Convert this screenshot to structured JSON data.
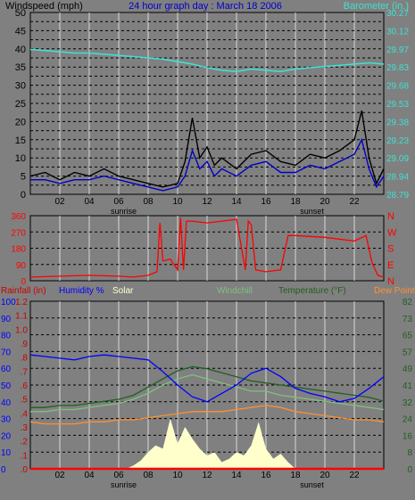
{
  "chart_data": [
    {
      "type": "line",
      "title": "24 hour graph day : March 18 2006",
      "ylabel_left": "Windspeed (mph)",
      "ylabel_right": "Barometer (in.)",
      "x_ticks": [
        "02",
        "04",
        "06",
        "08",
        "10",
        "12",
        "14",
        "16",
        "18",
        "20",
        "22"
      ],
      "x_annotations": {
        "sunrise": "sunrise",
        "sunset": "sunset"
      },
      "sunrise_hour": 6.3,
      "sunset_hour": 18.2,
      "ylim_left": [
        0,
        50
      ],
      "yticks_left": [
        "0",
        "2.5",
        "5",
        "7.5",
        "10",
        "12.5",
        "15",
        "17.5",
        "20",
        "22.5",
        "25",
        "27.5",
        "30",
        "32.5",
        "35",
        "37.5",
        "40",
        "42.5",
        "45",
        "47.5",
        "50"
      ],
      "yticks_left_labels": [
        "0",
        "5",
        "10",
        "15",
        "20",
        "25",
        "30",
        "35",
        "40",
        "45",
        "50"
      ],
      "ylim_right": [
        28.79,
        30.27
      ],
      "yticks_right": [
        "28.79",
        "28.94",
        "29.09",
        "29.23",
        "29.38",
        "29.53",
        "29.68",
        "29.83",
        "29.97",
        "30.12",
        "30.27"
      ],
      "series": [
        {
          "name": "Barometer",
          "color": "#40e0d0",
          "axis": "right",
          "x": [
            0,
            1,
            2,
            3,
            4,
            5,
            6,
            7,
            8,
            9,
            10,
            11,
            12,
            13,
            14,
            15,
            16,
            17,
            18,
            19,
            20,
            21,
            22,
            23,
            24
          ],
          "y": [
            29.97,
            29.96,
            29.95,
            29.94,
            29.94,
            29.93,
            29.92,
            29.91,
            29.9,
            29.89,
            29.87,
            29.85,
            29.82,
            29.8,
            29.79,
            29.81,
            29.8,
            29.79,
            29.81,
            29.82,
            29.83,
            29.84,
            29.85,
            29.86,
            29.85
          ]
        },
        {
          "name": "Wind gust",
          "color": "#000000",
          "axis": "left",
          "x": [
            0,
            1,
            2,
            3,
            4,
            5,
            6,
            7,
            8,
            9,
            10,
            10.5,
            11,
            11.5,
            12,
            12.5,
            13,
            14,
            15,
            16,
            17,
            18,
            19,
            20,
            21,
            22,
            22.5,
            23,
            23.5,
            24
          ],
          "y": [
            5,
            6,
            4,
            6,
            5,
            7,
            5,
            4,
            3,
            2,
            3,
            9,
            21,
            10,
            13,
            8,
            10,
            7,
            11,
            12,
            9,
            8,
            11,
            10,
            12,
            15,
            23,
            10,
            3,
            7
          ]
        },
        {
          "name": "Wind avg",
          "color": "#0000cc",
          "axis": "left",
          "x": [
            0,
            1,
            2,
            3,
            4,
            5,
            6,
            7,
            8,
            9,
            10,
            10.5,
            11,
            11.5,
            12,
            12.5,
            13,
            14,
            15,
            16,
            17,
            18,
            19,
            20,
            21,
            22,
            22.5,
            23,
            23.5,
            24
          ],
          "y": [
            4,
            4,
            3,
            4,
            4,
            5,
            4,
            3,
            2,
            1,
            2,
            5,
            12,
            7,
            9,
            5,
            7,
            5,
            8,
            9,
            6,
            6,
            8,
            7,
            9,
            11,
            15,
            7,
            2,
            5
          ]
        }
      ]
    },
    {
      "type": "line",
      "ylim": [
        0,
        360
      ],
      "yticks": [
        "0",
        "90",
        "180",
        "270",
        "360"
      ],
      "direction_labels": [
        "N",
        "W",
        "S",
        "E",
        "N"
      ],
      "series": [
        {
          "name": "Wind direction",
          "color": "#ff0000",
          "x": [
            0,
            2,
            4,
            6,
            7,
            8,
            8.6,
            8.8,
            9,
            9.5,
            10,
            10.2,
            10.4,
            10.6,
            11,
            12,
            13,
            14,
            14.6,
            14.8,
            15,
            15.3,
            16,
            17,
            17.5,
            18,
            20,
            22,
            22.8,
            23.2,
            23.6,
            24
          ],
          "y": [
            20,
            25,
            30,
            25,
            20,
            30,
            50,
            320,
            110,
            120,
            60,
            350,
            60,
            330,
            330,
            320,
            330,
            340,
            60,
            330,
            310,
            60,
            50,
            60,
            250,
            250,
            240,
            220,
            250,
            100,
            30,
            20
          ]
        }
      ]
    },
    {
      "type": "line",
      "labels": {
        "rain": "Rainfall (in)",
        "humidity": "Humidity %",
        "solar": "Solar",
        "windchill": "Windchill",
        "temperature": "Temperature (°F)",
        "dewpoint": "Dew Point"
      },
      "ylim_humidity": [
        0,
        100
      ],
      "yticks_humidity": [
        "0",
        "10",
        "20",
        "30",
        "40",
        "50",
        "60",
        "70",
        "80",
        "90",
        "100"
      ],
      "yticks_rain": [
        ".0",
        ".1",
        ".2",
        ".3",
        ".4",
        ".5",
        ".6",
        ".7",
        ".8",
        ".9",
        "1.0",
        "1.1",
        "1.2"
      ],
      "ylim_temperature": [
        0,
        82
      ],
      "yticks_temperature": [
        "0",
        "8",
        "16",
        "24",
        "32",
        "41",
        "49",
        "57",
        "65",
        "73",
        "82"
      ],
      "series": [
        {
          "name": "Humidity",
          "color": "#0000ff",
          "axis": "humidity",
          "x": [
            0,
            1,
            2,
            3,
            4,
            5,
            6,
            7,
            8,
            9,
            10,
            11,
            12,
            13,
            14,
            15,
            16,
            17,
            18,
            19,
            20,
            21,
            22,
            23,
            24
          ],
          "y": [
            68,
            67,
            66,
            65,
            67,
            68,
            67,
            66,
            65,
            58,
            50,
            43,
            40,
            45,
            50,
            57,
            60,
            55,
            48,
            45,
            43,
            40,
            42,
            48,
            55
          ]
        },
        {
          "name": "Temperature",
          "color": "#206020",
          "axis": "temperature",
          "x": [
            0,
            1,
            2,
            3,
            4,
            5,
            6,
            7,
            8,
            9,
            10,
            11,
            12,
            13,
            14,
            15,
            16,
            17,
            18,
            19,
            20,
            21,
            22,
            23,
            24
          ],
          "y": [
            30,
            30,
            31,
            31,
            32,
            33,
            34,
            36,
            40,
            44,
            48,
            50,
            49,
            47,
            45,
            43,
            42,
            41,
            40,
            39,
            38,
            37,
            36,
            35,
            33
          ]
        },
        {
          "name": "Windchill",
          "color": "#80c080",
          "axis": "temperature",
          "x": [
            0,
            1,
            2,
            3,
            4,
            5,
            6,
            7,
            8,
            9,
            10,
            11,
            12,
            13,
            14,
            15,
            16,
            17,
            18,
            19,
            20,
            21,
            22,
            23,
            24
          ],
          "y": [
            28,
            28,
            29,
            29,
            30,
            31,
            32,
            34,
            37,
            41,
            44,
            46,
            44,
            42,
            40,
            38,
            38,
            36,
            35,
            34,
            33,
            32,
            31,
            30,
            29
          ]
        },
        {
          "name": "Dew Point",
          "color": "#ff9030",
          "axis": "temperature",
          "x": [
            0,
            1,
            2,
            3,
            4,
            5,
            6,
            7,
            8,
            9,
            10,
            11,
            12,
            13,
            14,
            15,
            16,
            17,
            18,
            19,
            20,
            21,
            22,
            23,
            24
          ],
          "y": [
            23,
            22,
            22,
            22,
            23,
            23,
            24,
            24,
            25,
            26,
            27,
            28,
            28,
            28,
            29,
            30,
            31,
            30,
            28,
            27,
            26,
            25,
            24,
            24,
            23
          ]
        },
        {
          "name": "Solar",
          "color": "#ffffcc",
          "axis": "humidity",
          "x": [
            6.5,
            7,
            7.5,
            8,
            8.5,
            9,
            9.5,
            10,
            10.5,
            11,
            11.5,
            12,
            12.5,
            13,
            13.5,
            14,
            14.5,
            15,
            15.5,
            16,
            16.5,
            17,
            17.5,
            18
          ],
          "y": [
            0,
            2,
            5,
            10,
            14,
            12,
            30,
            15,
            25,
            18,
            12,
            8,
            10,
            4,
            6,
            10,
            8,
            14,
            28,
            12,
            6,
            9,
            4,
            0
          ]
        },
        {
          "name": "Rainfall",
          "color": "#ff0000",
          "axis": "humidity",
          "x": [
            0,
            24
          ],
          "y": [
            0,
            0
          ]
        }
      ]
    }
  ]
}
